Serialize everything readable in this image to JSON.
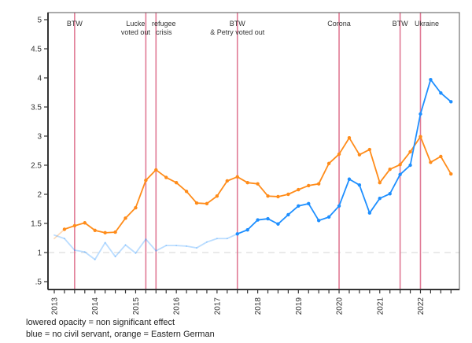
{
  "chart_data": {
    "type": "line",
    "title": "",
    "xlabel": "",
    "ylabel": "",
    "ylim": [
      0.5,
      5
    ],
    "y_ticks": [
      ".5",
      "1",
      "1.5",
      "2",
      "2.5",
      "3",
      "3.5",
      "4",
      "4.5",
      "5"
    ],
    "y_tick_values": [
      0.5,
      1,
      1.5,
      2,
      2.5,
      3,
      3.5,
      4,
      4.5,
      5
    ],
    "x_start_year": 2013,
    "x_unit": "quarter",
    "x_tick_labels": [
      "2013",
      "2014",
      "2015",
      "2016",
      "2017",
      "2018",
      "2019",
      "2020",
      "2021",
      "2022"
    ],
    "reference_line": {
      "y": 1,
      "style": "dashed",
      "color": "#dddddd"
    },
    "series": [
      {
        "name": "Eastern German",
        "color": "#ff8c1a",
        "values": [
          1.24,
          1.4,
          1.46,
          1.51,
          1.38,
          1.34,
          1.35,
          1.59,
          1.77,
          2.24,
          2.42,
          2.29,
          2.2,
          2.05,
          1.85,
          1.84,
          1.97,
          2.23,
          2.3,
          2.2,
          2.18,
          1.97,
          1.96,
          2.0,
          2.08,
          2.15,
          2.18,
          2.53,
          2.69,
          2.97,
          2.68,
          2.77,
          2.2,
          2.43,
          2.51,
          2.73,
          2.99,
          2.55,
          2.65,
          2.35
        ],
        "significant": [
          false,
          true,
          true,
          true,
          true,
          true,
          true,
          true,
          true,
          true,
          true,
          true,
          true,
          true,
          true,
          true,
          true,
          true,
          true,
          true,
          true,
          true,
          true,
          true,
          true,
          true,
          true,
          true,
          true,
          true,
          true,
          true,
          true,
          true,
          true,
          true,
          true,
          true,
          true,
          true
        ]
      },
      {
        "name": "no civil servant",
        "color": "#1e8fff",
        "values": [
          1.3,
          1.24,
          1.04,
          1.01,
          0.88,
          1.17,
          0.93,
          1.13,
          0.99,
          1.23,
          1.03,
          1.12,
          1.12,
          1.11,
          1.08,
          1.18,
          1.24,
          1.24,
          1.32,
          1.39,
          1.56,
          1.58,
          1.49,
          1.65,
          1.8,
          1.84,
          1.55,
          1.61,
          1.8,
          2.26,
          2.16,
          1.68,
          1.93,
          2.01,
          2.34,
          2.5,
          3.38,
          3.97,
          3.74,
          3.59
        ],
        "significant": [
          false,
          false,
          false,
          false,
          false,
          false,
          false,
          false,
          false,
          false,
          false,
          false,
          false,
          false,
          false,
          false,
          false,
          false,
          true,
          true,
          true,
          true,
          true,
          true,
          true,
          true,
          true,
          true,
          true,
          true,
          true,
          true,
          true,
          true,
          true,
          true,
          true,
          true,
          true,
          true
        ]
      }
    ],
    "events": [
      {
        "label": [
          "BTW"
        ],
        "quarter_index": 2
      },
      {
        "label": [
          "Lucke",
          "voted out"
        ],
        "quarter_index": 9
      },
      {
        "label": [
          "refugee",
          "crisis"
        ],
        "quarter_index": 10
      },
      {
        "label": [
          "BTW",
          "& Petry voted out"
        ],
        "quarter_index": 18
      },
      {
        "label": [
          "Corona"
        ],
        "quarter_index": 28
      },
      {
        "label": [
          "BTW"
        ],
        "quarter_index": 34
      },
      {
        "label": [
          "Ukraine"
        ],
        "quarter_index": 36
      }
    ],
    "event_line_color": "#e07a95",
    "legend": "below"
  },
  "notes": {
    "opacity_note": "lowered opacity = non significant effect",
    "color_note": "blue = no civil servant, orange = Eastern German"
  }
}
